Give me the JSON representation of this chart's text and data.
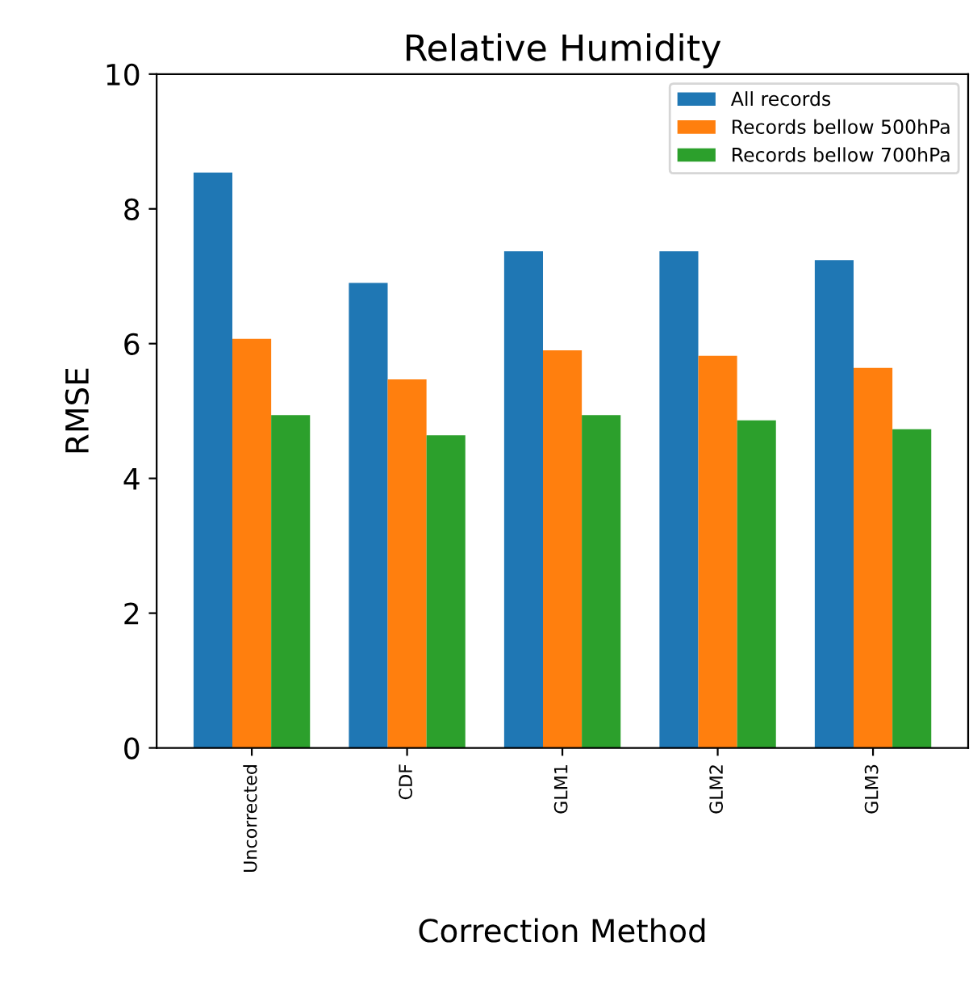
{
  "chart_data": {
    "type": "bar",
    "title": "Relative Humidity",
    "xlabel": "Correction Method",
    "ylabel": "RMSE",
    "categories": [
      "Uncorrected",
      "CDF",
      "GLM1",
      "GLM2",
      "GLM3"
    ],
    "series": [
      {
        "name": "All records",
        "color": "#1f77b4",
        "values": [
          8.54,
          6.9,
          7.37,
          7.37,
          7.24
        ]
      },
      {
        "name": "Records bellow 500hPa",
        "color": "#ff7f0e",
        "values": [
          6.07,
          5.47,
          5.9,
          5.82,
          5.64
        ]
      },
      {
        "name": "Records bellow 700hPa",
        "color": "#2ca02c",
        "values": [
          4.94,
          4.64,
          4.94,
          4.86,
          4.73
        ]
      }
    ],
    "ylim": [
      0,
      10
    ],
    "yticks": [
      0,
      2,
      4,
      6,
      8,
      10
    ],
    "grid": false,
    "legend": "top right"
  }
}
